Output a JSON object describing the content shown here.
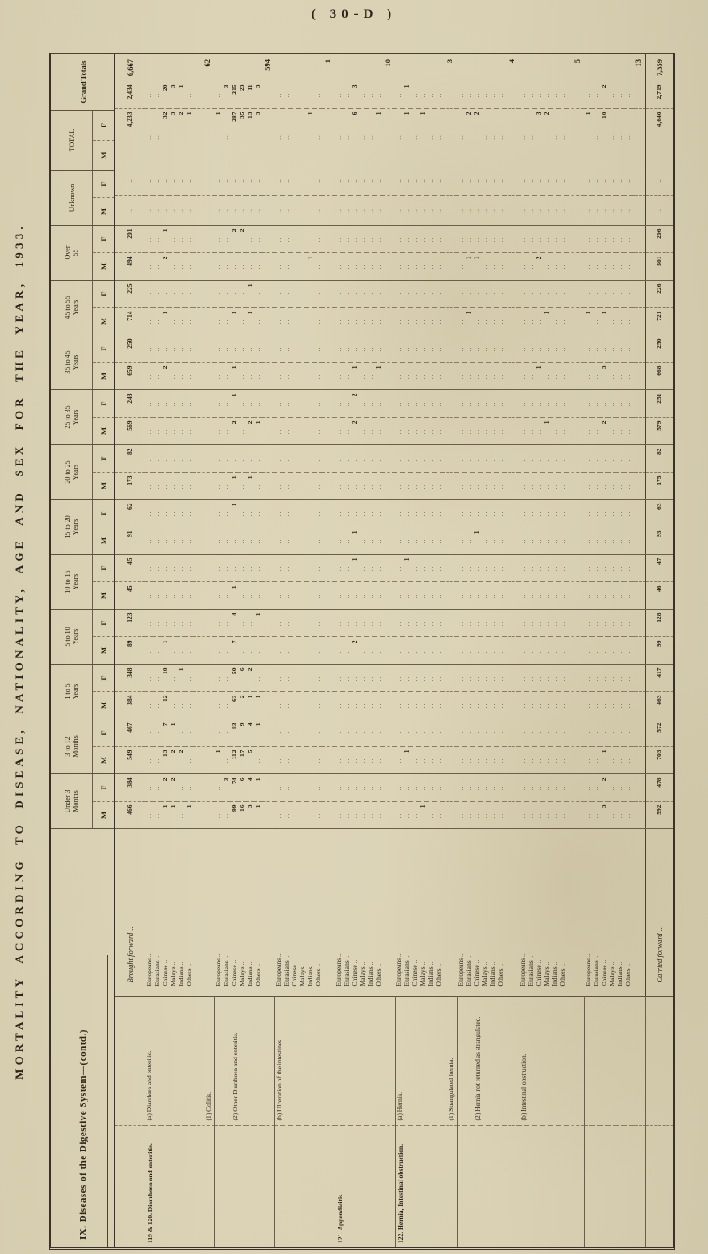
{
  "page_number": "(  30-D  )",
  "side_title": "MORTALITY ACCORDING TO DISEASE, NATIONALITY, AGE AND SEX FOR THE YEAR, 1933.",
  "section_heading": "IX.  Diseases of the Digestive System—(contd.)",
  "empty_cell": "..",
  "leader": " ..",
  "colors": {
    "paper": "#d8cfb2",
    "ink": "#2b2418",
    "rule": "#54483a"
  },
  "header": {
    "grand_totals": "Grand Totals",
    "mf": [
      "M",
      "F"
    ],
    "ages": [
      [
        "Under 3",
        "Months"
      ],
      [
        "3 to 12",
        "Months"
      ],
      [
        "1 to 5",
        "Years"
      ],
      [
        "5 to 10",
        "Years"
      ],
      [
        "10 to 15",
        "Years"
      ],
      [
        "15 to 20",
        "Years"
      ],
      [
        "20 to 25",
        "Years"
      ],
      [
        "25 to 35",
        "Years"
      ],
      [
        "35 to 45",
        "Years"
      ],
      [
        "45 to 55",
        "Years"
      ],
      [
        "Over",
        "55"
      ],
      [
        "Unknown",
        ""
      ],
      [
        "TOTAL",
        ""
      ]
    ]
  },
  "nationalities": [
    "Europeans",
    "Eurasians",
    "Chinese",
    "Malays",
    "Indians",
    "Others"
  ],
  "brought_forward": {
    "label": "Brought forward",
    "v": {
      "0": "466",
      "1": "384",
      "2": "549",
      "3": "467",
      "4": "384",
      "5": "348",
      "6": "89",
      "7": "123",
      "8": "45",
      "9": "45",
      "10": "91",
      "11": "62",
      "12": "173",
      "13": "82",
      "14": "569",
      "15": "248",
      "16": "659",
      "17": "250",
      "18": "714",
      "19": "225",
      "20": "494",
      "21": "201",
      "24": "4,233",
      "25": "2,434"
    },
    "gt": "6,667"
  },
  "groups": [
    {
      "l1": "119 & 120. Diarrhoea and enteritis.",
      "l2": "(a) Diarrhœa and enteritis.",
      "l3": "(1) Colitis.",
      "gt": "62",
      "rows": [
        {},
        {},
        {
          "0": "1",
          "1": "2",
          "2": "13",
          "3": "7",
          "4": "12",
          "5": "10",
          "6": "1",
          "16": "2",
          "18": "1",
          "20": "2",
          "21": "1",
          "24": "32",
          "25": "20"
        },
        {
          "0": "1",
          "1": "2",
          "2": "2",
          "3": "1",
          "24": "3",
          "25": "3"
        },
        {
          "2": "2",
          "5": "1",
          "24": "2",
          "25": "1"
        },
        {
          "0": "1",
          "24": "1"
        }
      ]
    },
    {
      "l1": "",
      "l2": "",
      "l3": "(2) Other Diarrhoea and enteritis.",
      "gt": "594",
      "rows": [
        {
          "2": "1",
          "24": "1"
        },
        {
          "1": "3",
          "25": "3"
        },
        {
          "0": "99",
          "1": "74",
          "2": "112",
          "3": "83",
          "4": "63",
          "5": "50",
          "6": "7",
          "7": "4",
          "8": "1",
          "11": "1",
          "12": "1",
          "14": "2",
          "15": "1",
          "16": "1",
          "18": "1",
          "21": "2",
          "24": "287",
          "25": "215"
        },
        {
          "0": "16",
          "1": "6",
          "2": "17",
          "3": "9",
          "4": "2",
          "5": "6",
          "21": "2",
          "24": "35",
          "25": "23"
        },
        {
          "0": "3",
          "1": "4",
          "2": "5",
          "3": "4",
          "4": "1",
          "5": "2",
          "12": "1",
          "14": "2",
          "18": "1",
          "19": "1",
          "24": "13",
          "25": "11"
        },
        {
          "0": "1",
          "1": "1",
          "3": "1",
          "4": "1",
          "7": "1",
          "14": "1",
          "24": "3",
          "25": "3"
        }
      ]
    },
    {
      "l1": "",
      "l2": "(b) Ulceration of the intestines.",
      "l3": "",
      "gt": "1",
      "rows": [
        {},
        {},
        {},
        {},
        {
          "20": "1",
          "24": "1"
        },
        {}
      ]
    },
    {
      "l1": "121. Appendicitis.",
      "l2": "",
      "l3": "",
      "gt": "10",
      "rows": [
        {},
        {},
        {
          "6": "2",
          "9": "1",
          "10": "1",
          "14": "2",
          "15": "2",
          "16": "1",
          "24": "6",
          "25": "3"
        },
        {},
        {},
        {
          "16": "1",
          "24": "1"
        }
      ]
    },
    {
      "l1": "122. Hernia, Intestinal obstruction.",
      "l2": "(a) Hernia.",
      "l3": "(1) Strangulated hernia.",
      "gt": "3",
      "rows": [
        {},
        {
          "2": "1",
          "9": "1",
          "24": "1",
          "25": "1"
        },
        {},
        {
          "0": "1",
          "24": "1"
        },
        {},
        {}
      ]
    },
    {
      "l1": "",
      "l2": "",
      "l3": "(2) Hernia not returned as strangulated.",
      "gt": "4",
      "rows": [
        {},
        {
          "18": "1",
          "20": "1",
          "24": "2"
        },
        {
          "10": "1",
          "20": "1",
          "24": "2"
        },
        {},
        {},
        {}
      ]
    },
    {
      "l1": "",
      "l2": "(b) Intestinal obstruction.",
      "l3": "",
      "gt": "5",
      "rows": [
        {},
        {},
        {
          "16": "1",
          "20": "2",
          "24": "3"
        },
        {
          "14": "1",
          "18": "1",
          "24": "2"
        },
        {},
        {}
      ]
    },
    {
      "l1": "",
      "l2": "",
      "l3": "",
      "gt": "13",
      "rows": [
        {
          "18": "1",
          "24": "1"
        },
        {},
        {
          "0": "3",
          "1": "2",
          "2": "1",
          "14": "2",
          "16": "3",
          "18": "1",
          "24": "10",
          "25": "2"
        },
        {},
        {},
        {}
      ]
    }
  ],
  "carried_forward": {
    "label": "Carried forward",
    "v": {
      "0": "592",
      "1": "478",
      "2": "703",
      "3": "572",
      "4": "463",
      "5": "417",
      "6": "99",
      "7": "128",
      "8": "46",
      "9": "47",
      "10": "93",
      "11": "63",
      "12": "175",
      "13": "82",
      "14": "579",
      "15": "251",
      "16": "668",
      "17": "250",
      "18": "721",
      "19": "226",
      "20": "501",
      "21": "206",
      "24": "4,640",
      "25": "2,719"
    },
    "gt": "7,359"
  }
}
